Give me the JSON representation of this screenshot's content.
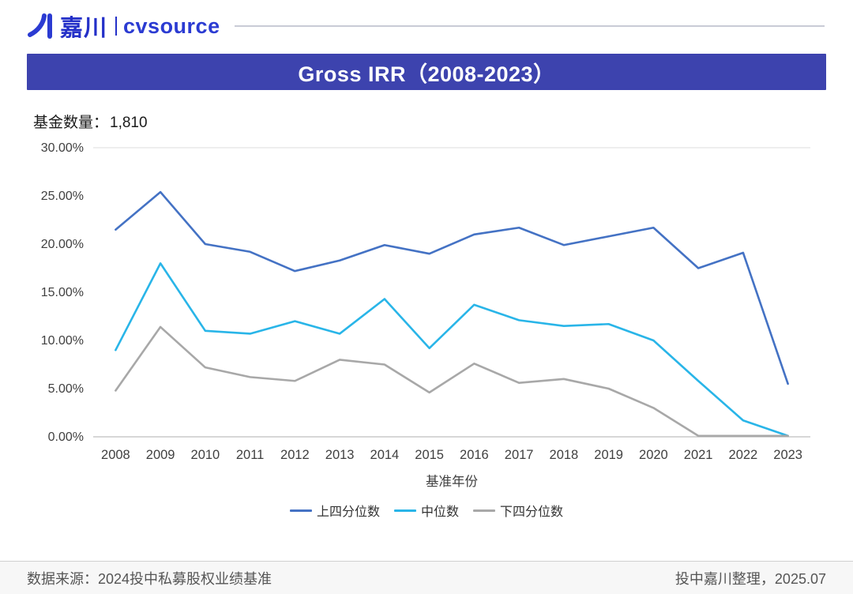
{
  "header": {
    "brand_cn": "嘉川",
    "brand_en": "cvsource"
  },
  "banner": {
    "title": "Gross IRR（2008-2023）"
  },
  "subtitle": {
    "label": "基金数量：",
    "value": "1,810"
  },
  "chart_data": {
    "type": "line",
    "title": "Gross IRR（2008-2023）",
    "x": [
      2008,
      2009,
      2010,
      2011,
      2012,
      2013,
      2014,
      2015,
      2016,
      2017,
      2018,
      2019,
      2020,
      2021,
      2022,
      2023
    ],
    "series": [
      {
        "name": "上四分位数",
        "color": "#4472C4",
        "values": [
          21.5,
          25.4,
          20.0,
          19.2,
          17.2,
          18.3,
          19.9,
          19.0,
          21.0,
          21.7,
          19.9,
          20.8,
          21.7,
          17.5,
          19.1,
          5.5
        ]
      },
      {
        "name": "中位数",
        "color": "#29B5E8",
        "values": [
          9.0,
          18.0,
          11.0,
          10.7,
          12.0,
          10.7,
          14.3,
          9.2,
          13.7,
          12.1,
          11.5,
          11.7,
          10.0,
          5.8,
          1.7,
          0.1
        ]
      },
      {
        "name": "下四分位数",
        "color": "#A8A8A8",
        "values": [
          4.8,
          11.4,
          7.2,
          6.2,
          5.8,
          8.0,
          7.5,
          4.6,
          7.6,
          5.6,
          6.0,
          5.0,
          3.0,
          0.1,
          0.1,
          0.1
        ]
      }
    ],
    "xlabel": "基准年份",
    "ylabel": "",
    "ylim": [
      0,
      30
    ],
    "ytick_step": 5,
    "ytick_labels": [
      "0.00%",
      "5.00%",
      "10.00%",
      "15.00%",
      "20.00%",
      "25.00%",
      "30.00%"
    ],
    "grid": false,
    "legend_position": "bottom"
  },
  "footer": {
    "source": "数据来源：2024投中私募股权业绩基准",
    "credit": "投中嘉川整理，2025.07"
  }
}
